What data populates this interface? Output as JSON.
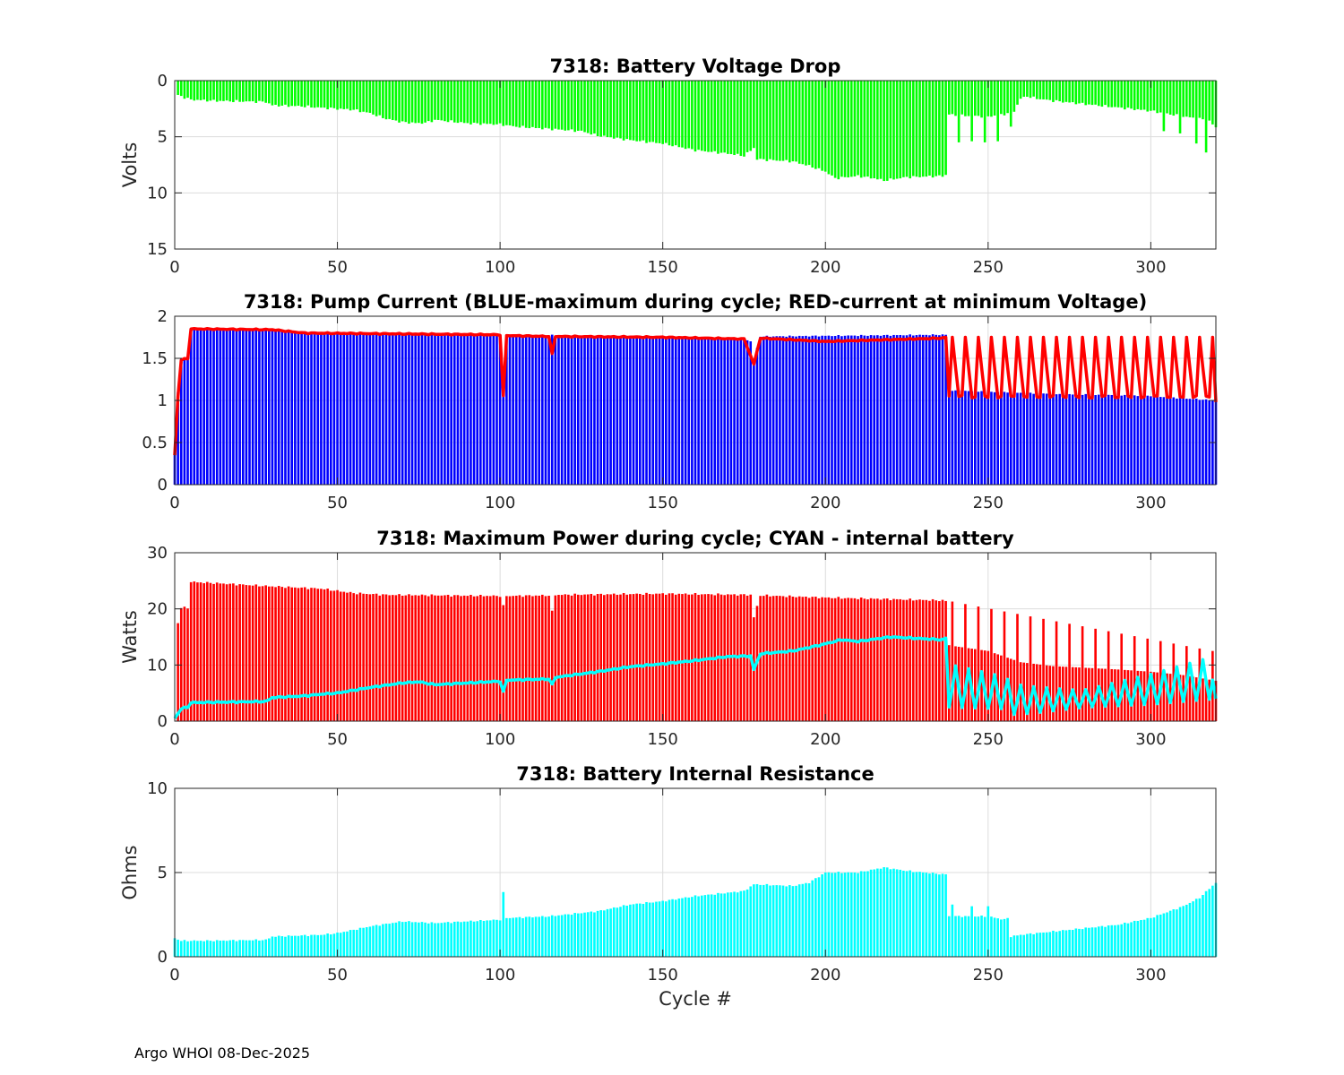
{
  "footer": "Argo WHOI 08-Dec-2025",
  "colors": {
    "green": "#00ff00",
    "blue": "#0000ff",
    "red": "#ff0000",
    "cyan": "#00ffff",
    "grid": "#dcdcdc",
    "axis": "#262626"
  },
  "chart_data": [
    {
      "type": "bar",
      "title": "7318: Battery Voltage Drop",
      "xlabel": "",
      "ylabel": "Volts",
      "xlim": [
        0,
        320
      ],
      "ylim": [
        0,
        15
      ],
      "y_reversed": true,
      "xticks": [
        "0",
        "50",
        "100",
        "150",
        "200",
        "250",
        "300"
      ],
      "yticks": [
        "0",
        "5",
        "10",
        "15"
      ],
      "grid": true,
      "series": [
        {
          "name": "Voltage drop",
          "style": "bar",
          "color": "green",
          "knots": [
            [
              1,
              1.3
            ],
            [
              3,
              1.5
            ],
            [
              5,
              1.7
            ],
            [
              12,
              1.8
            ],
            [
              28,
              1.9
            ],
            [
              30,
              2.2
            ],
            [
              40,
              2.3
            ],
            [
              44,
              2.4
            ],
            [
              55,
              2.6
            ],
            [
              60,
              2.9
            ],
            [
              65,
              3.4
            ],
            [
              70,
              3.7
            ],
            [
              75,
              3.8
            ],
            [
              78,
              3.7
            ],
            [
              80,
              3.5
            ],
            [
              90,
              3.8
            ],
            [
              100,
              3.9
            ],
            [
              105,
              4.1
            ],
            [
              115,
              4.3
            ],
            [
              125,
              4.5
            ],
            [
              130,
              4.9
            ],
            [
              140,
              5.3
            ],
            [
              150,
              5.6
            ],
            [
              155,
              5.9
            ],
            [
              160,
              6.2
            ],
            [
              170,
              6.5
            ],
            [
              175,
              6.7
            ],
            [
              178,
              6.0
            ],
            [
              179,
              7.0
            ],
            [
              190,
              7.2
            ],
            [
              195,
              7.6
            ],
            [
              200,
              8.1
            ],
            [
              203,
              8.7
            ],
            [
              210,
              8.5
            ],
            [
              215,
              8.7
            ],
            [
              218,
              8.9
            ],
            [
              225,
              8.6
            ],
            [
              236,
              8.5
            ],
            [
              237,
              8.4
            ],
            [
              238,
              3.0
            ],
            [
              240,
              3.1
            ],
            [
              250,
              3.2
            ],
            [
              255,
              3.0
            ],
            [
              258,
              2.7
            ],
            [
              260,
              1.6
            ],
            [
              262,
              1.4
            ],
            [
              265,
              1.6
            ],
            [
              270,
              1.8
            ],
            [
              280,
              2.1
            ],
            [
              290,
              2.4
            ],
            [
              300,
              2.7
            ],
            [
              310,
              3.2
            ],
            [
              315,
              3.4
            ],
            [
              318,
              3.6
            ],
            [
              320,
              4.2
            ]
          ],
          "spikes": [
            [
              241,
              5.5
            ],
            [
              245,
              5.4
            ],
            [
              249,
              5.5
            ],
            [
              253,
              5.4
            ],
            [
              257,
              4.1
            ],
            [
              314,
              5.6
            ],
            [
              317,
              6.4
            ],
            [
              304,
              4.5
            ],
            [
              309,
              4.7
            ]
          ]
        }
      ]
    },
    {
      "type": "bar",
      "title": "7318: Pump Current (BLUE-maximum during cycle; RED-current at minimum Voltage)",
      "xlabel": "",
      "ylabel": "",
      "xlim": [
        0,
        320
      ],
      "ylim": [
        0,
        2
      ],
      "xticks": [
        "0",
        "50",
        "100",
        "150",
        "200",
        "250",
        "300"
      ],
      "yticks": [
        "0",
        "0.5",
        "1",
        "1.5",
        "2"
      ],
      "grid": true,
      "series": [
        {
          "name": "BLUE-maximum during cycle",
          "style": "bar",
          "color": "blue",
          "knots": [
            [
              0,
              0.4
            ],
            [
              1,
              1.1
            ],
            [
              2,
              1.5
            ],
            [
              4,
              1.5
            ],
            [
              5,
              1.85
            ],
            [
              30,
              1.84
            ],
            [
              40,
              1.8
            ],
            [
              100,
              1.78
            ],
            [
              101,
              1.05
            ],
            [
              102,
              1.78
            ],
            [
              150,
              1.76
            ],
            [
              175,
              1.74
            ],
            [
              177,
              1.7
            ],
            [
              178,
              1.48
            ],
            [
              180,
              1.76
            ],
            [
              236,
              1.78
            ],
            [
              237,
              1.78
            ],
            [
              238,
              1.12
            ],
            [
              250,
              1.1
            ],
            [
              300,
              1.05
            ],
            [
              320,
              1.0
            ]
          ]
        },
        {
          "name": "RED-current at minimum Voltage",
          "style": "line",
          "color": "red",
          "knots": [
            [
              0,
              0.35
            ],
            [
              1,
              1.05
            ],
            [
              2,
              1.48
            ],
            [
              4,
              1.5
            ],
            [
              5,
              1.85
            ],
            [
              30,
              1.84
            ],
            [
              40,
              1.8
            ],
            [
              100,
              1.78
            ],
            [
              101,
              1.05
            ],
            [
              102,
              1.77
            ],
            [
              115,
              1.76
            ],
            [
              116,
              1.55
            ],
            [
              117,
              1.76
            ],
            [
              150,
              1.75
            ],
            [
              175,
              1.73
            ],
            [
              178,
              1.43
            ],
            [
              180,
              1.74
            ],
            [
              190,
              1.72
            ],
            [
              200,
              1.7
            ],
            [
              236,
              1.74
            ],
            [
              237,
              1.75
            ],
            [
              238,
              1.05
            ],
            [
              320,
              0.98
            ]
          ],
          "oscillation": {
            "start": 239,
            "end": 319,
            "period": 4,
            "peak": 1.75,
            "base": 1.03
          }
        }
      ]
    },
    {
      "type": "bar",
      "title": "7318: Maximum Power during cycle; CYAN - internal battery",
      "xlabel": "",
      "ylabel": "Watts",
      "xlim": [
        0,
        320
      ],
      "ylim": [
        0,
        30
      ],
      "xticks": [
        "0",
        "50",
        "100",
        "150",
        "200",
        "250",
        "300"
      ],
      "yticks": [
        "0",
        "10",
        "20",
        "30"
      ],
      "grid": true,
      "series": [
        {
          "name": "Maximum Power",
          "style": "bar",
          "color": "red",
          "knots": [
            [
              1,
              17.5
            ],
            [
              2,
              20.2
            ],
            [
              4,
              20.2
            ],
            [
              5,
              24.8
            ],
            [
              15,
              24.5
            ],
            [
              30,
              24.0
            ],
            [
              45,
              23.6
            ],
            [
              50,
              23.2
            ],
            [
              55,
              22.8
            ],
            [
              65,
              22.5
            ],
            [
              100,
              22.3
            ],
            [
              101,
              20.5
            ],
            [
              102,
              22.3
            ],
            [
              115,
              22.4
            ],
            [
              116,
              19.5
            ],
            [
              117,
              22.5
            ],
            [
              150,
              22.7
            ],
            [
              177,
              22.5
            ],
            [
              178,
              18.5
            ],
            [
              180,
              22.4
            ],
            [
              200,
              22.0
            ],
            [
              236,
              21.5
            ],
            [
              237,
              21.4
            ],
            [
              238,
              13.5
            ],
            [
              250,
              12.5
            ],
            [
              260,
              10.5
            ],
            [
              270,
              9.8
            ],
            [
              290,
              9.2
            ],
            [
              300,
              8.8
            ],
            [
              310,
              8.2
            ],
            [
              320,
              7.2
            ]
          ],
          "oscillation": {
            "start": 239,
            "end": 319,
            "period": 4,
            "peak_start": 21.3,
            "peak_end": 12.5
          }
        },
        {
          "name": "CYAN - internal battery",
          "style": "line",
          "color": "cyan",
          "knots": [
            [
              0,
              0.5
            ],
            [
              2,
              2.2
            ],
            [
              4,
              2.5
            ],
            [
              5,
              3.3
            ],
            [
              28,
              3.5
            ],
            [
              30,
              4.2
            ],
            [
              40,
              4.5
            ],
            [
              45,
              4.8
            ],
            [
              50,
              5.0
            ],
            [
              60,
              6.0
            ],
            [
              70,
              6.8
            ],
            [
              75,
              7.0
            ],
            [
              80,
              6.5
            ],
            [
              90,
              6.8
            ],
            [
              100,
              7.1
            ],
            [
              101,
              5.2
            ],
            [
              102,
              7.3
            ],
            [
              115,
              7.5
            ],
            [
              116,
              6.5
            ],
            [
              117,
              7.8
            ],
            [
              130,
              8.8
            ],
            [
              140,
              9.7
            ],
            [
              150,
              10.2
            ],
            [
              160,
              10.8
            ],
            [
              170,
              11.5
            ],
            [
              177,
              11.6
            ],
            [
              178,
              9.2
            ],
            [
              180,
              12.0
            ],
            [
              190,
              12.5
            ],
            [
              198,
              13.5
            ],
            [
              205,
              14.5
            ],
            [
              210,
              14.2
            ],
            [
              220,
              15.0
            ],
            [
              236,
              14.5
            ],
            [
              237,
              14.8
            ],
            [
              238,
              2.5
            ],
            [
              255,
              2.2
            ],
            [
              258,
              1.2
            ],
            [
              265,
              1.5
            ],
            [
              280,
              2.5
            ],
            [
              300,
              3.0
            ],
            [
              320,
              4.0
            ]
          ],
          "oscillation": {
            "start": 239,
            "end": 319,
            "period": 4,
            "amp_start": 7.5,
            "amp_mid": 3.0,
            "amp_end": 7.5
          }
        }
      ]
    },
    {
      "type": "bar",
      "title": "7318: Battery Internal Resistance",
      "xlabel": "Cycle #",
      "ylabel": "Ohms",
      "xlim": [
        0,
        320
      ],
      "ylim": [
        0,
        10
      ],
      "xticks": [
        "0",
        "50",
        "100",
        "150",
        "200",
        "250",
        "300"
      ],
      "yticks": [
        "0",
        "5",
        "10"
      ],
      "grid": true,
      "series": [
        {
          "name": "Internal resistance",
          "style": "bar",
          "color": "cyan",
          "knots": [
            [
              0,
              1.1
            ],
            [
              2,
              0.95
            ],
            [
              10,
              0.95
            ],
            [
              28,
              1.0
            ],
            [
              30,
              1.2
            ],
            [
              45,
              1.3
            ],
            [
              50,
              1.4
            ],
            [
              60,
              1.8
            ],
            [
              70,
              2.1
            ],
            [
              80,
              2.0
            ],
            [
              90,
              2.1
            ],
            [
              100,
              2.2
            ],
            [
              101,
              3.8
            ],
            [
              102,
              2.3
            ],
            [
              115,
              2.4
            ],
            [
              130,
              2.7
            ],
            [
              140,
              3.1
            ],
            [
              150,
              3.3
            ],
            [
              160,
              3.6
            ],
            [
              175,
              3.9
            ],
            [
              178,
              4.3
            ],
            [
              190,
              4.2
            ],
            [
              195,
              4.4
            ],
            [
              200,
              5.0
            ],
            [
              210,
              5.0
            ],
            [
              218,
              5.3
            ],
            [
              225,
              5.1
            ],
            [
              236,
              4.9
            ],
            [
              237,
              4.9
            ],
            [
              238,
              2.4
            ],
            [
              250,
              2.4
            ],
            [
              255,
              2.2
            ],
            [
              257,
              1.2
            ],
            [
              260,
              1.3
            ],
            [
              270,
              1.5
            ],
            [
              290,
              1.9
            ],
            [
              300,
              2.3
            ],
            [
              310,
              3.0
            ],
            [
              315,
              3.5
            ],
            [
              320,
              4.4
            ]
          ],
          "spikes": [
            [
              239,
              3.1
            ],
            [
              245,
              3.0
            ],
            [
              250,
              3.0
            ],
            [
              256,
              2.3
            ]
          ]
        }
      ]
    }
  ]
}
